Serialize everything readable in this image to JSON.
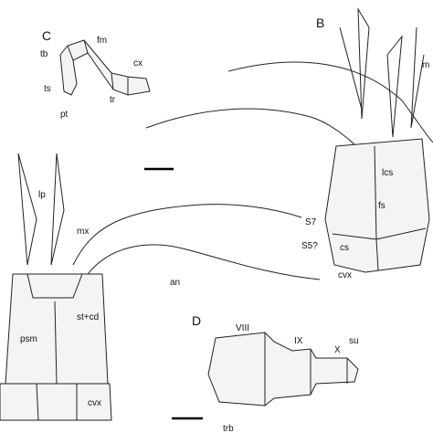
{
  "panels": [
    {
      "label": "C",
      "annotations": [
        "tb",
        "fm",
        "cx",
        "ts",
        "tr",
        "pt"
      ]
    },
    {
      "label": "B",
      "annotations": [
        "m",
        "lcs",
        "fs",
        "S7",
        "S5?",
        "cs",
        "cvx"
      ]
    },
    {
      "annotations": [
        "lp",
        "mx",
        "an",
        "st+cd",
        "psm",
        "cvx"
      ]
    },
    {
      "label": "D",
      "annotations": [
        "VIII",
        "IX",
        "X",
        "su",
        "trb"
      ]
    }
  ]
}
